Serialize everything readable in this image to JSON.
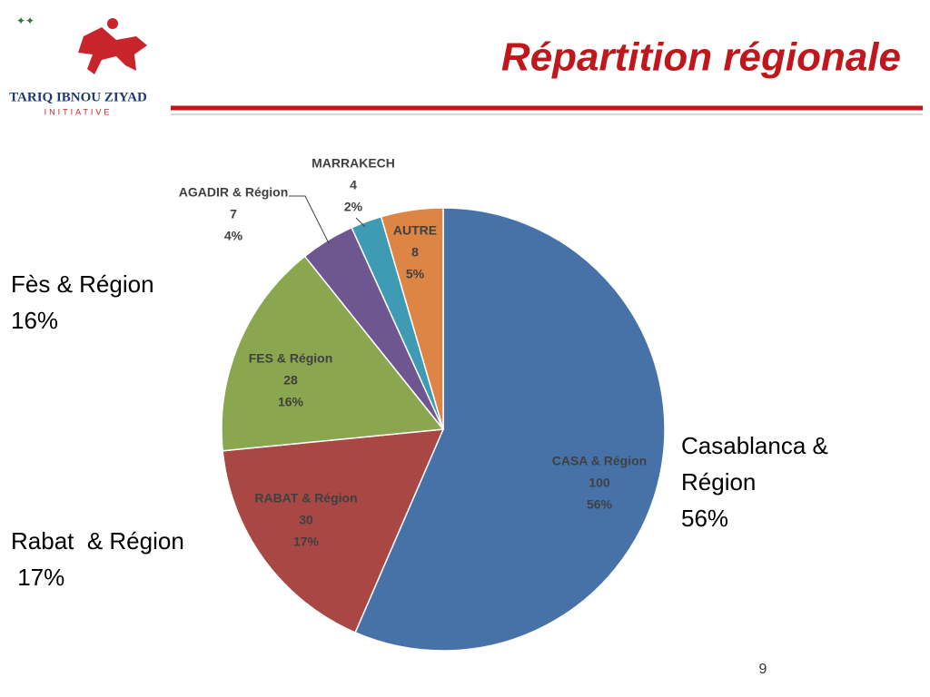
{
  "header": {
    "logo_name": "TARIQ IBNOU ZIYAD",
    "logo_sub": "INITIATIVE",
    "title": "Répartition régionale"
  },
  "chart_data": {
    "type": "pie",
    "categories": [
      "CASA & Région",
      "RABAT & Région",
      "FES & Région",
      "AGADIR & Région",
      "MARRAKECH",
      "AUTRE"
    ],
    "values": [
      100,
      30,
      28,
      7,
      4,
      8
    ],
    "percent_labels": [
      "56%",
      "17%",
      "16%",
      "4%",
      "2%",
      "5%"
    ],
    "colors": [
      "#4672a8",
      "#a84744",
      "#8aa64f",
      "#6e5790",
      "#3f9bb3",
      "#dc8544"
    ]
  },
  "side_labels": [
    [
      "Fès & Région",
      "16%"
    ],
    [
      "Casablanca &",
      "Région",
      "56%"
    ],
    [
      "Rabat  & Région",
      " 17%"
    ]
  ],
  "page_number": "9"
}
